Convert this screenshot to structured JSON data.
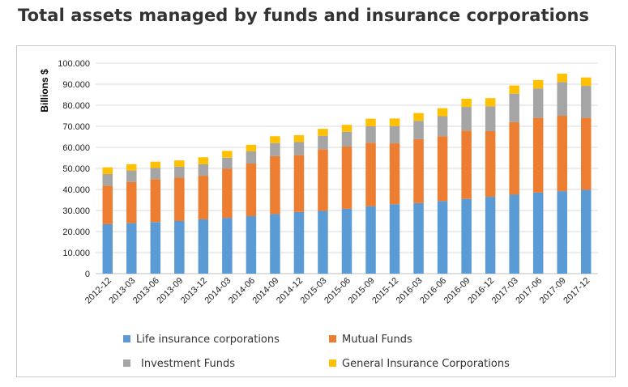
{
  "page_title": "Total assets managed by funds and insurance corporations",
  "chart_data": {
    "type": "bar",
    "stacked": true,
    "ylabel": "Billions $",
    "ylim": [
      0,
      100
    ],
    "yticks": [
      "0",
      "10.000",
      "20.000",
      "30.000",
      "40.000",
      "50.000",
      "60.000",
      "70.000",
      "80.000",
      "90.000",
      "100.000"
    ],
    "grid": true,
    "legend_position": "bottom",
    "categories": [
      "2012-12",
      "2013-03",
      "2013-06",
      "2013-09",
      "2013-12",
      "2014-03",
      "2014-06",
      "2014-09",
      "2014-12",
      "2015-03",
      "2015-06",
      "2015-09",
      "2015-12",
      "2016-03",
      "2016-06",
      "2016-09",
      "2016-12",
      "2017-03",
      "2017-06",
      "2017-09",
      "2017-12"
    ],
    "series": [
      {
        "name": "Life insurance corporations",
        "color": "#5b9bd5",
        "values": [
          23.5,
          24.0,
          24.5,
          25.0,
          25.8,
          26.5,
          27.3,
          28.3,
          29.3,
          29.8,
          30.8,
          32.0,
          33.0,
          33.5,
          34.5,
          35.5,
          36.5,
          37.5,
          38.5,
          39.2,
          39.8
        ]
      },
      {
        "name": "Mutual Funds",
        "color": "#ed7d31",
        "values": [
          18.3,
          19.5,
          20.4,
          20.6,
          20.7,
          23.3,
          25.0,
          27.5,
          27.0,
          29.2,
          29.6,
          30.2,
          28.9,
          30.4,
          30.8,
          32.5,
          31.2,
          34.5,
          35.5,
          35.8,
          34.2
        ]
      },
      {
        "name": "Investment Funds",
        "color": "#a5a5a5",
        "values": [
          5.5,
          5.5,
          5.3,
          5.2,
          5.5,
          5.3,
          5.8,
          6.2,
          6.2,
          6.5,
          7.0,
          7.8,
          8.2,
          8.7,
          9.5,
          11.2,
          11.8,
          13.5,
          14.0,
          16.0,
          15.2
        ]
      },
      {
        "name": "General Insurance Corporations",
        "color": "#ffc000",
        "values": [
          3.2,
          3.0,
          3.0,
          3.0,
          3.3,
          3.2,
          3.1,
          3.3,
          3.3,
          3.3,
          3.3,
          3.6,
          3.6,
          3.7,
          3.8,
          3.9,
          3.9,
          3.9,
          4.0,
          4.0,
          4.0
        ]
      }
    ]
  }
}
